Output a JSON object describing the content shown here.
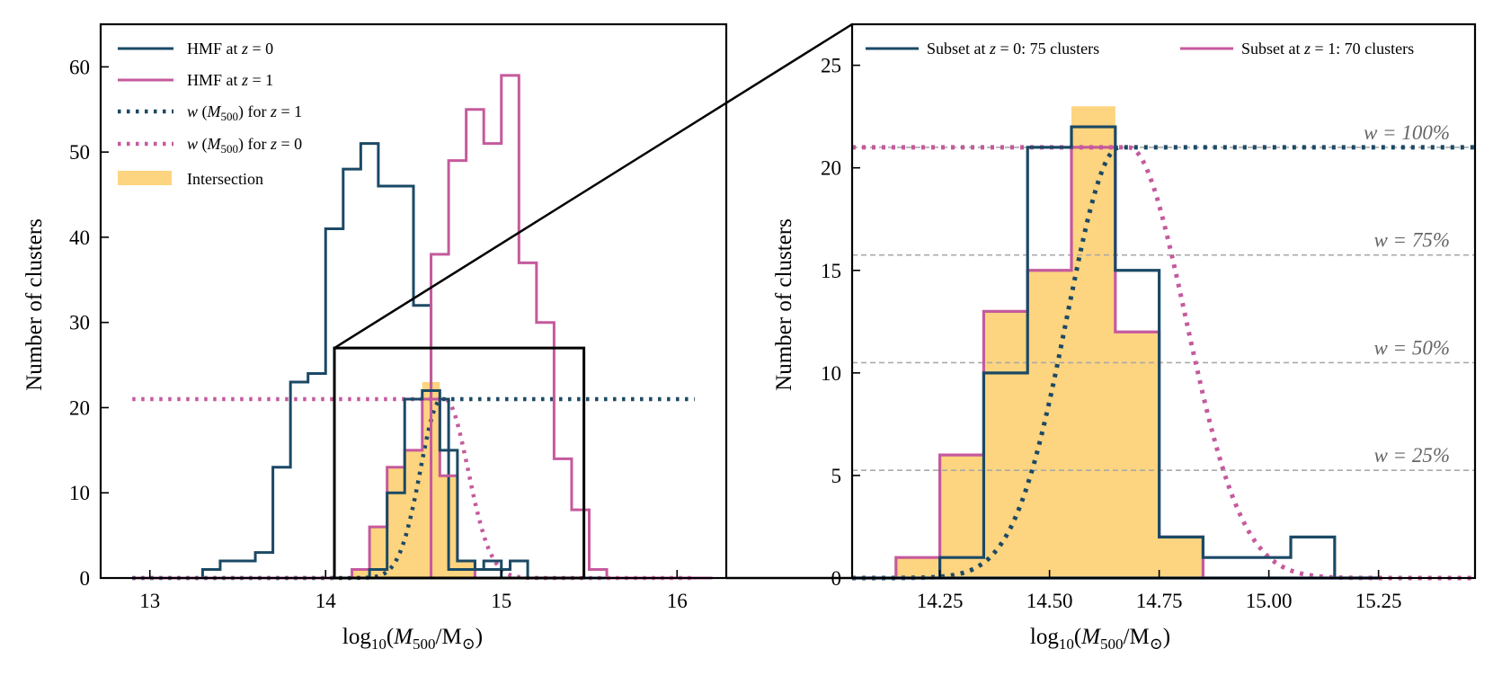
{
  "chart_data": [
    {
      "type": "histogram",
      "panel": "left",
      "xlabel": "log₁₀(M₅₀₀/M⊙)",
      "ylabel": "Number of clusters",
      "xlim": [
        12.72,
        16.28
      ],
      "ylim": [
        0,
        65
      ],
      "xticks": [
        13,
        14,
        15,
        16
      ],
      "xtick_labels": [
        "13",
        "14",
        "15",
        "16"
      ],
      "yticks": [
        0,
        10,
        20,
        30,
        40,
        50,
        60
      ],
      "ytick_labels": [
        "0",
        "10",
        "20",
        "30",
        "40",
        "50",
        "60"
      ],
      "bin_width": 0.1,
      "legend": {
        "placement": "top-left",
        "entries": [
          {
            "label": "HMF at z = 0",
            "color": "#1b4965",
            "style": "solid"
          },
          {
            "label": "HMF at z = 1",
            "color": "#c55a9d",
            "style": "solid"
          },
          {
            "label": "w(M₅₀₀) for z = 1",
            "color": "#1b4965",
            "style": "dotted"
          },
          {
            "label": "w(M₅₀₀) for z = 0",
            "color": "#c55a9d",
            "style": "dotted"
          },
          {
            "label": "Intersection",
            "color": "#fdd47f",
            "style": "fill"
          }
        ]
      },
      "series": [
        {
          "name": "HMF at z = 0",
          "color": "#1b4965",
          "bin_start": 12.9,
          "counts": [
            0,
            0,
            0,
            0,
            1,
            2,
            2,
            3,
            13,
            23,
            24,
            41,
            48,
            51,
            46,
            46,
            32,
            21,
            1,
            1,
            2,
            0,
            0,
            0,
            0,
            0,
            0,
            0,
            0,
            0,
            0,
            0,
            0
          ]
        },
        {
          "name": "HMF at z = 1",
          "color": "#c55a9d",
          "bin_start": 12.9,
          "counts": [
            0,
            0,
            0,
            0,
            0,
            0,
            0,
            0,
            0,
            0,
            0,
            0,
            0,
            0,
            0,
            0,
            0,
            38,
            49,
            55,
            51,
            59,
            37,
            30,
            14,
            8,
            1,
            0,
            0,
            0,
            0,
            0,
            0
          ]
        },
        {
          "name": "Subset at z = 0: 75 clusters",
          "color": "#1b4965",
          "bin_start": 14.05,
          "counts": [
            0,
            0,
            1,
            10,
            21,
            22,
            15,
            2,
            1,
            1,
            2,
            0
          ]
        },
        {
          "name": "Subset at z = 1: 70 clusters",
          "color": "#c55a9d",
          "bin_start": 14.05,
          "counts": [
            0,
            1,
            6,
            13,
            15,
            21,
            12,
            2,
            0,
            0,
            0,
            0
          ]
        },
        {
          "name": "Intersection",
          "color": "#fdd47f",
          "bin_start": 14.05,
          "counts": [
            0,
            1,
            6,
            13,
            15,
            23,
            12,
            2,
            0,
            0,
            0,
            0
          ]
        }
      ],
      "curves": [
        {
          "name": "w(M₅₀₀) for z = 1",
          "color": "#1b4965",
          "peak": 21,
          "mu": 14.66,
          "sigma": 0.12,
          "left_floor": 0,
          "right_floor": 21,
          "x_range": [
            12.9,
            16.1
          ]
        },
        {
          "name": "w(M₅₀₀) for z = 0",
          "color": "#c55a9d",
          "peak": 21,
          "mu": 14.68,
          "sigma": 0.13,
          "left_floor": 21,
          "right_floor": 0,
          "x_range": [
            12.9,
            16.1
          ]
        }
      ],
      "zoom_box": {
        "x": [
          14.05,
          15.47
        ],
        "y": [
          0,
          27
        ]
      }
    },
    {
      "type": "histogram",
      "panel": "right",
      "xlabel": "log₁₀(M₅₀₀/M⊙)",
      "ylabel": "Number of clusters",
      "xlim": [
        14.05,
        15.47
      ],
      "ylim": [
        0,
        27
      ],
      "xticks": [
        14.25,
        14.5,
        14.75,
        15.0,
        15.25
      ],
      "xtick_labels": [
        "14.25",
        "14.50",
        "14.75",
        "15.00",
        "15.25"
      ],
      "yticks": [
        0,
        5,
        10,
        15,
        20,
        25
      ],
      "ytick_labels": [
        "0",
        "5",
        "10",
        "15",
        "20",
        "25"
      ],
      "bin_width": 0.1,
      "legend": {
        "placement": "top",
        "entries": [
          {
            "label": "Subset at z = 0: 75 clusters",
            "color": "#1b4965"
          },
          {
            "label": "Subset at z = 1: 70 clusters",
            "color": "#c55a9d"
          }
        ]
      },
      "reference_lines": [
        {
          "label": "w = 100%",
          "y": 21
        },
        {
          "label": "w = 75%",
          "y": 15.75
        },
        {
          "label": "w = 50%",
          "y": 10.5
        },
        {
          "label": "w = 25%",
          "y": 5.25
        }
      ]
    }
  ]
}
